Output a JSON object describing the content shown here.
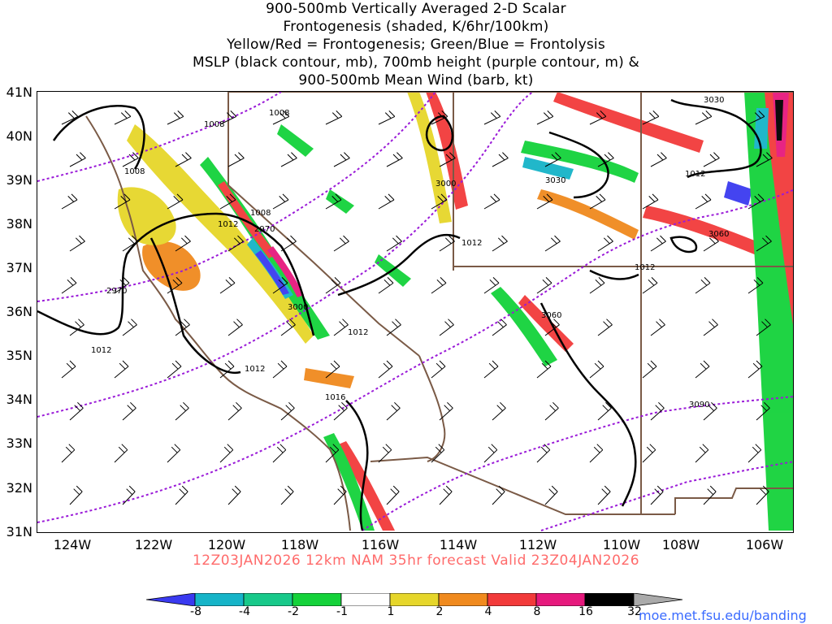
{
  "titles": [
    "900-500mb Vertically Averaged 2-D Scalar",
    "Frontogenesis (shaded, K/6hr/100km)",
    "Yellow/Red = Frontogenesis;  Green/Blue = Frontolysis",
    "MSLP (black contour, mb), 700mb height (purple contour, m) &",
    "900-500mb Mean Wind (barb, kt)"
  ],
  "lat_labels": [
    "41N",
    "40N",
    "39N",
    "38N",
    "37N",
    "36N",
    "35N",
    "34N",
    "33N",
    "32N",
    "31N"
  ],
  "lon_labels": [
    "124W",
    "122W",
    "120W",
    "118W",
    "116W",
    "114W",
    "112W",
    "110W",
    "108W",
    "106W"
  ],
  "valid_line": "12Z03JAN2026 12km NAM 35hr forecast Valid 23Z04JAN2026",
  "colorbar_labels": [
    "-8",
    "-4",
    "-2",
    "-1",
    "1",
    "2",
    "4",
    "8",
    "16",
    "32"
  ],
  "colorbar_colors": [
    "#3a3af0",
    "#16b4c8",
    "#18c98a",
    "#14d23a",
    "#ffffff",
    "#e6d62a",
    "#f08a1e",
    "#f23a3a",
    "#e6197d",
    "#000000",
    "#aaaaaa"
  ],
  "url": "moe.met.fsu.edu/banding",
  "mslp_labels": [
    "1008",
    "1008",
    "1008",
    "1008",
    "1012",
    "1012",
    "1012",
    "1012",
    "1012",
    "1012",
    "1012",
    "1016"
  ],
  "height_labels": [
    "3030",
    "3030",
    "3000",
    "2970",
    "2970",
    "3000",
    "3060",
    "3060",
    "3090"
  ],
  "colors": {
    "mslp": "#000000",
    "height": "#9a1ad8",
    "border": "#7a5a46",
    "title": "#000000",
    "valid": "#ff6b6b",
    "url": "#3a6bff"
  }
}
